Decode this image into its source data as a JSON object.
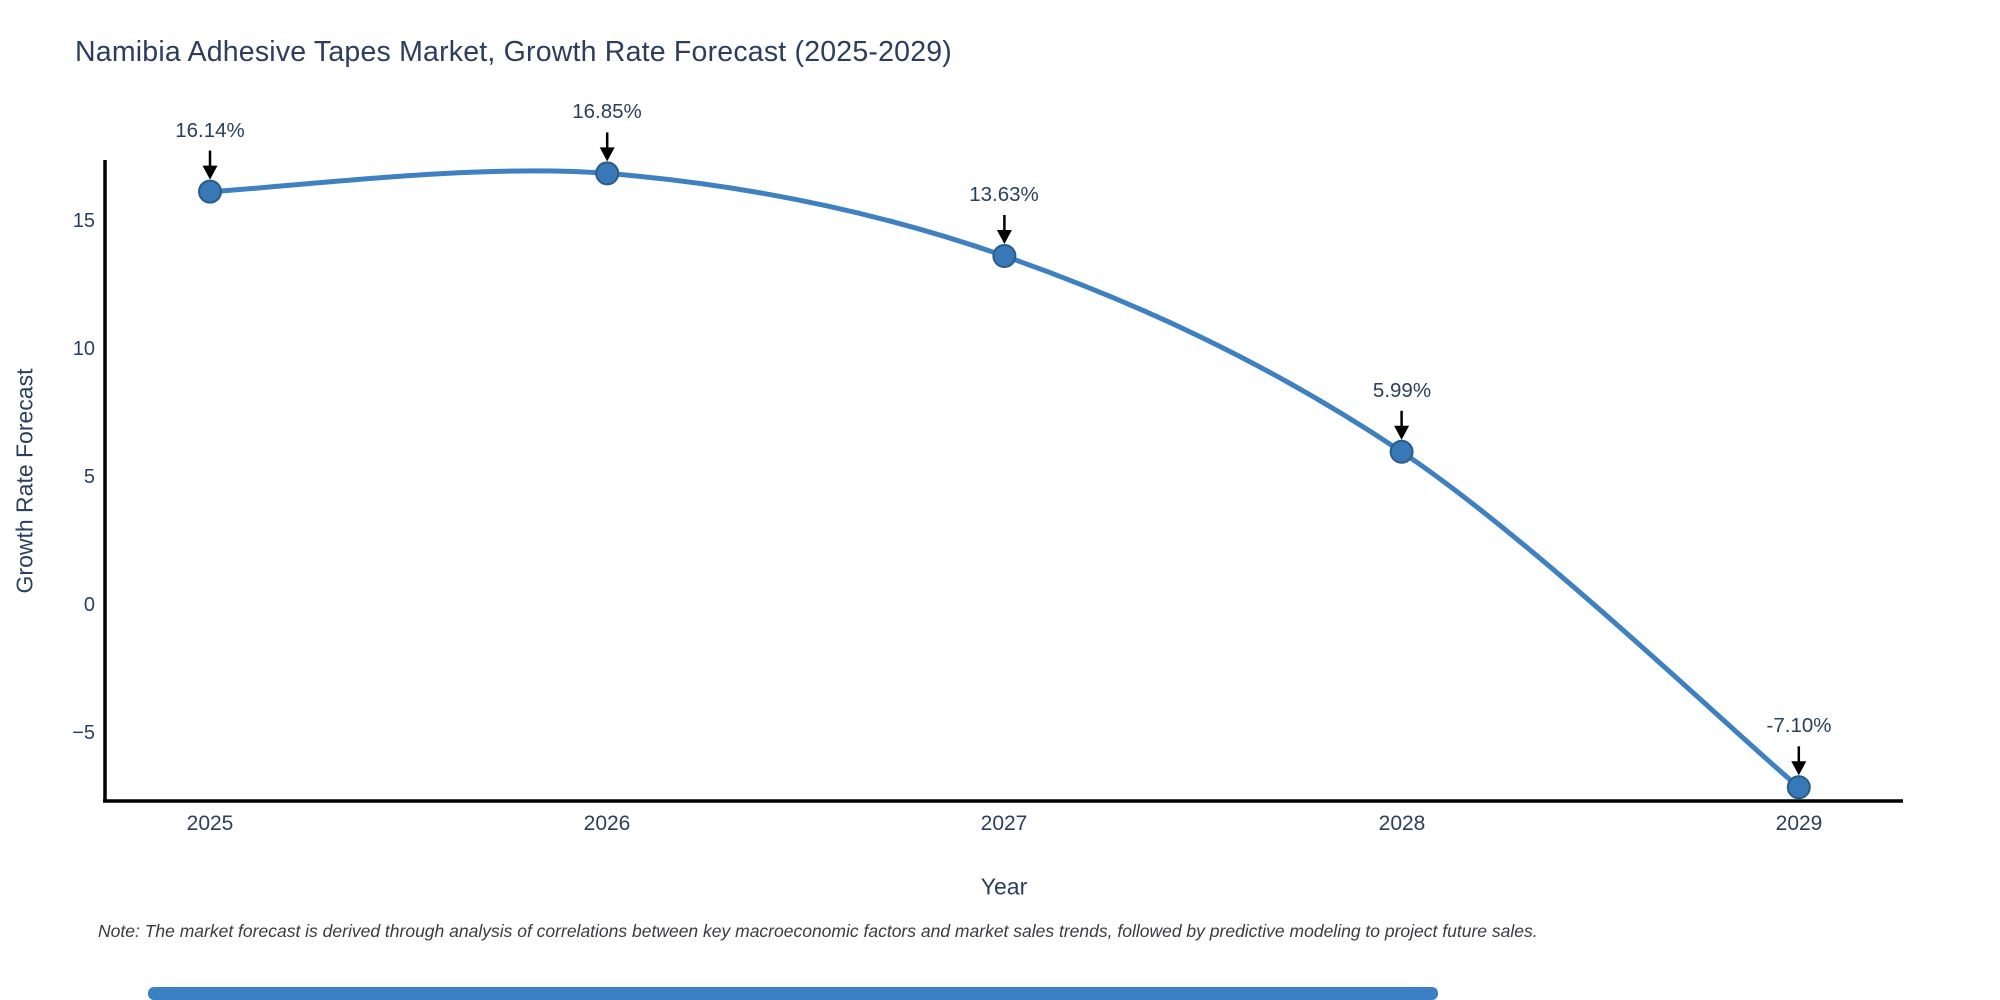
{
  "title": "Namibia Adhesive Tapes Market, Growth Rate Forecast (2025-2029)",
  "chart_data": {
    "type": "line",
    "title": "Namibia Adhesive Tapes Market, Growth Rate Forecast (2025-2029)",
    "x": [
      "2025",
      "2026",
      "2027",
      "2028",
      "2029"
    ],
    "values": [
      16.14,
      16.85,
      13.63,
      5.99,
      -7.1
    ],
    "point_labels": [
      "16.14%",
      "16.85%",
      "13.63%",
      "5.99%",
      "-7.10%"
    ],
    "xlabel": "Year",
    "ylabel": "Growth Rate Forecast",
    "y_ticks": [
      15,
      10,
      5,
      0,
      -5
    ],
    "ylim": [
      -7.6,
      17.4
    ],
    "line_shape": "spline",
    "grid": false,
    "legend": "none",
    "markers": true,
    "annotation_style": "value-label-with-down-arrow"
  },
  "note": "Note: The market forecast is derived through analysis of correlations between key macroeconomic factors and market sales trends, followed by predictive modeling to project future sales.",
  "colors": {
    "title_text": "#2c3e5d",
    "tick_text": "#2a3f5f",
    "line": "#3f80c1",
    "marker_fill": "#3878b6",
    "marker_edge": "#2a5c88",
    "axis_line": "#000000",
    "arrow": "#000000",
    "note_text": "#3b3b40",
    "scrollbar": "#3b7fc4",
    "background": "#ffffff"
  }
}
